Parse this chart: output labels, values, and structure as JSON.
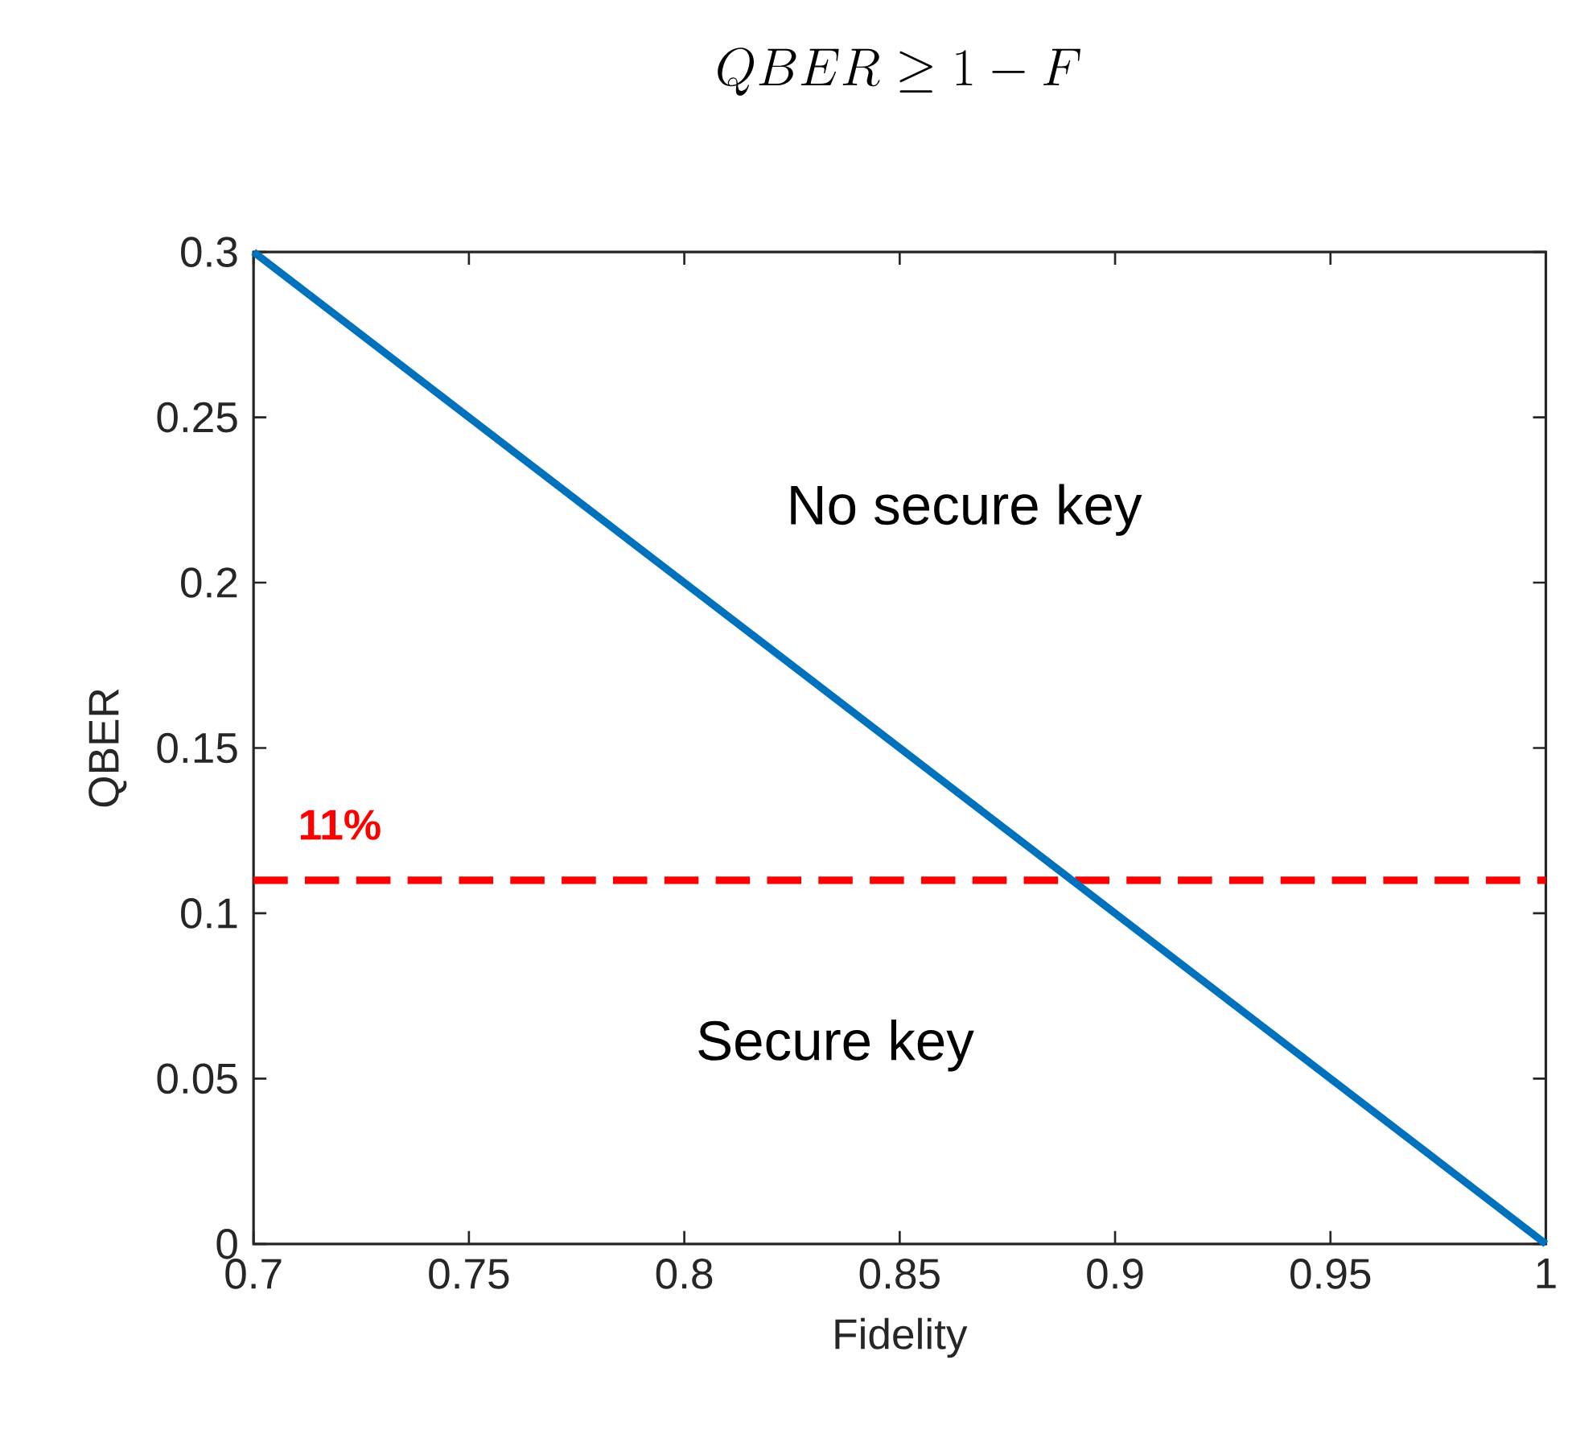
{
  "chart_data": {
    "type": "line",
    "title": "QBER \\geq 1 - F",
    "xlabel": "Fidelity",
    "ylabel": "QBER",
    "x": [
      0.7,
      1
    ],
    "series": [
      {
        "color": "#0072bd",
        "values": [
          0.3,
          0
        ]
      }
    ],
    "xlim": [
      0.7,
      1
    ],
    "ylim": [
      0,
      0.3
    ],
    "xticks": [
      0.7,
      0.75,
      0.8,
      0.85,
      0.9,
      0.95,
      1
    ],
    "yticks": [
      0,
      0.05,
      0.1,
      0.15,
      0.2,
      0.25,
      0.3
    ],
    "ref_lines": [
      {
        "axis": "y",
        "value": 0.11,
        "label": "11%",
        "color": "#ff0000",
        "line_style": "dashed"
      }
    ],
    "annotations": [
      "No secure key",
      "Secure key"
    ],
    "marker": "none"
  }
}
